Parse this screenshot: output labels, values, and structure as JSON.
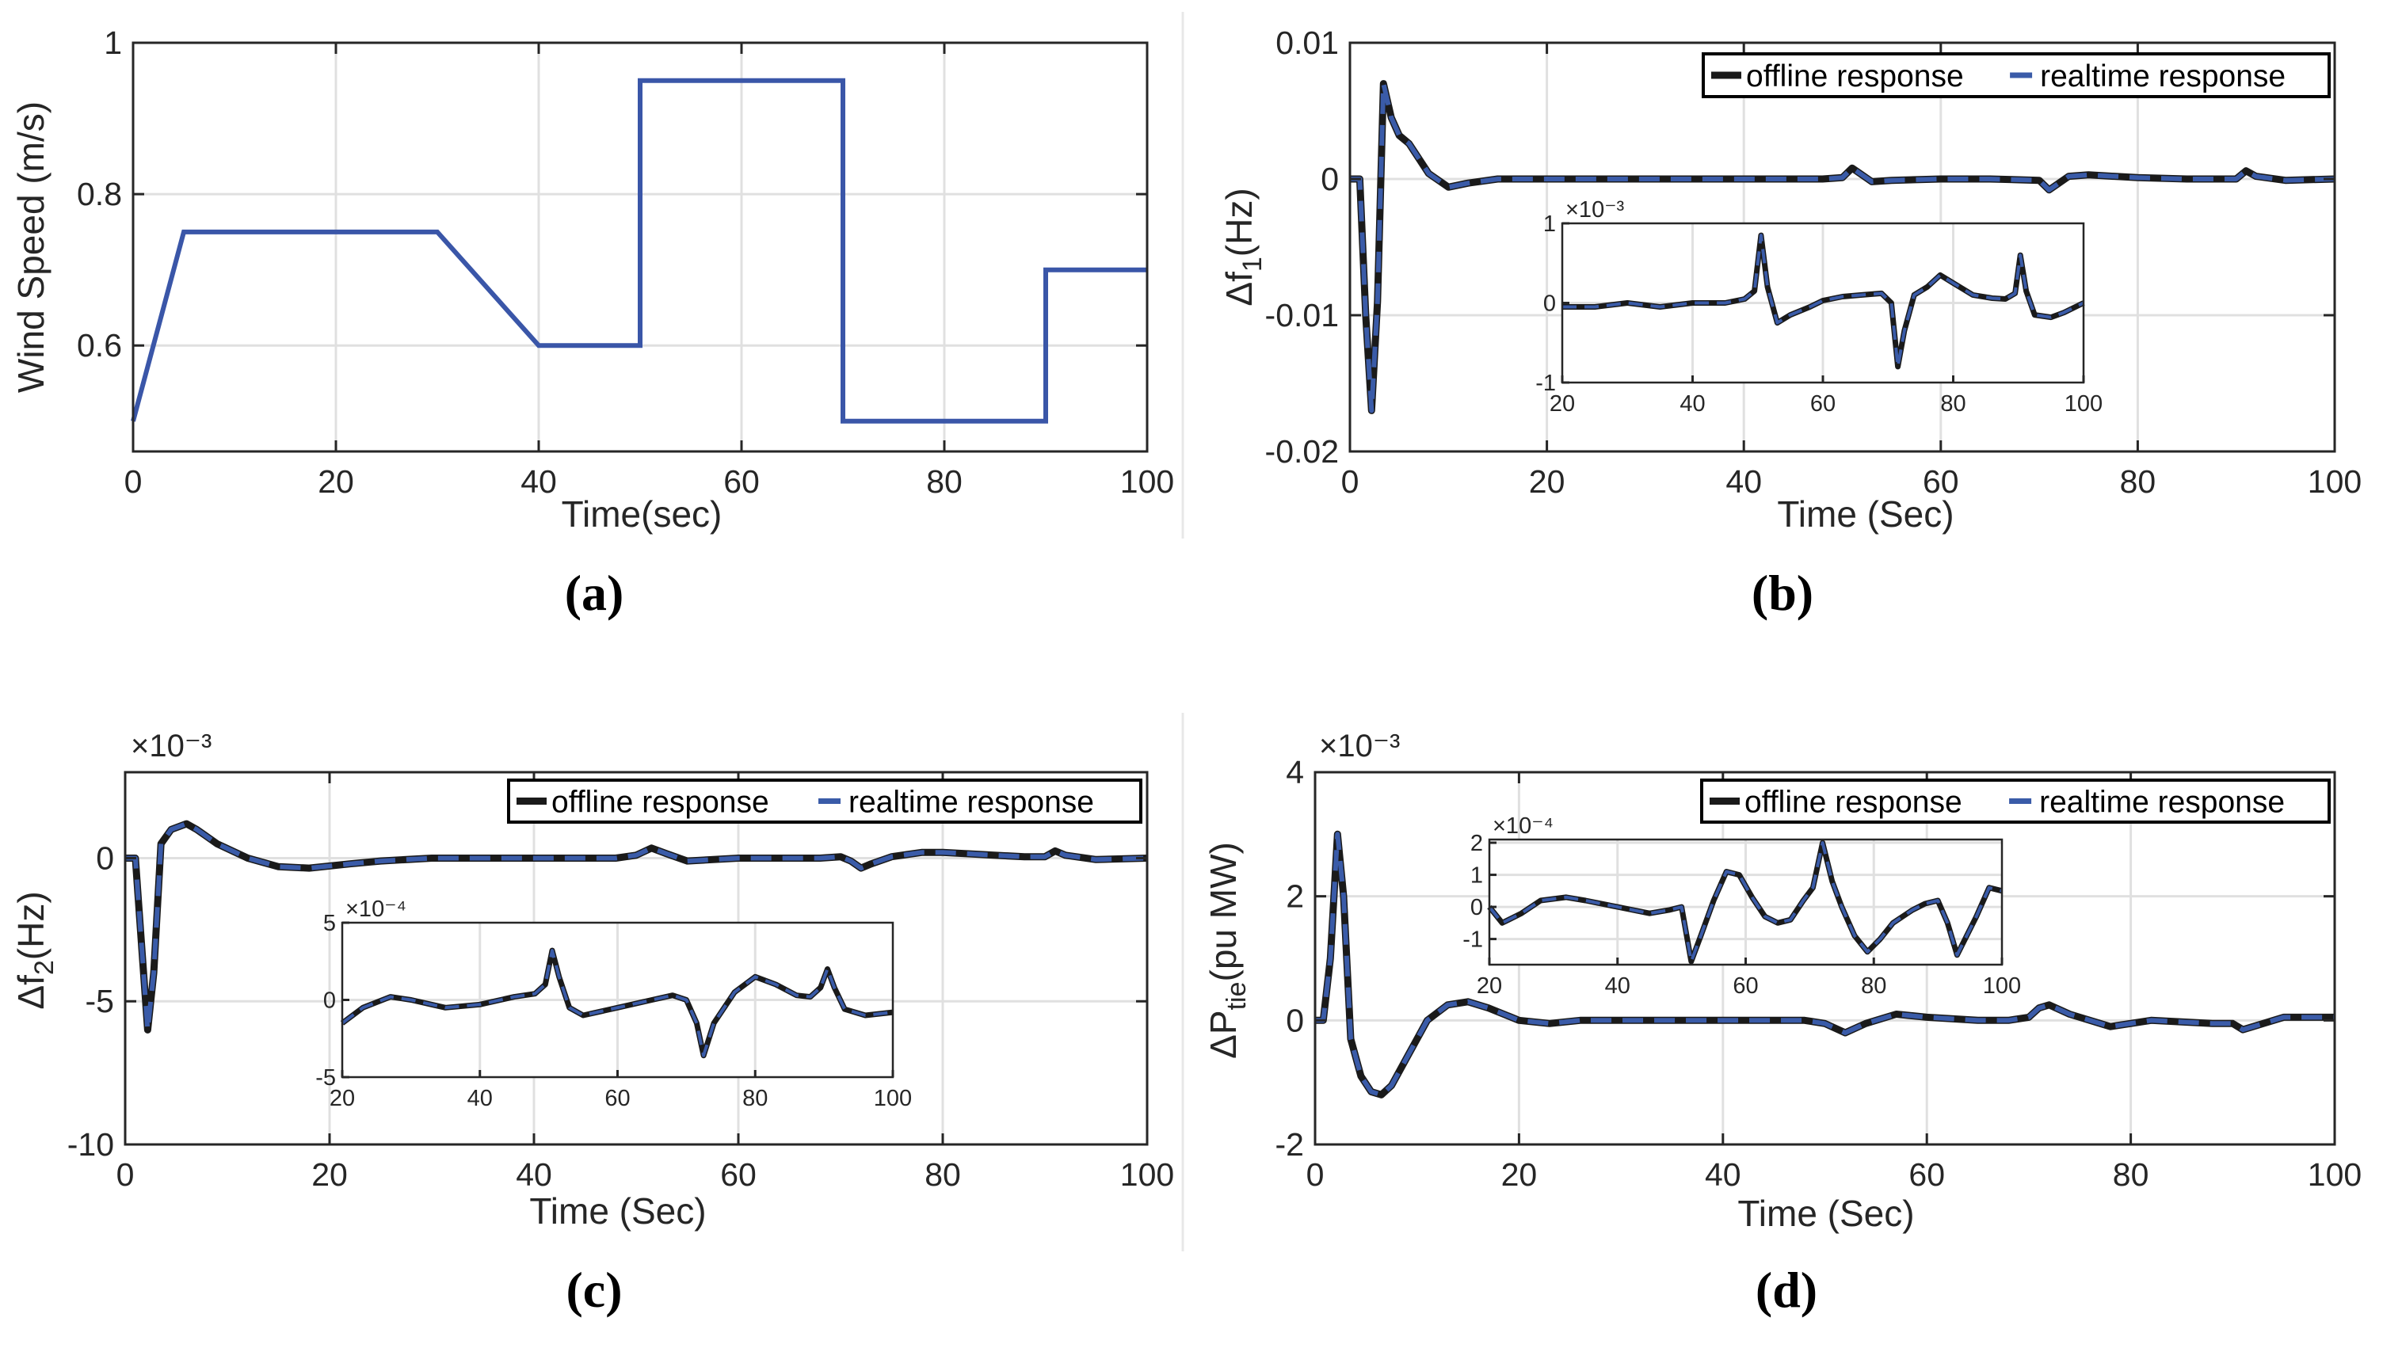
{
  "colors": {
    "offline": "#1a1a1a",
    "realtime": "#3a5ba8",
    "wind": "#3a56a8",
    "grid": "#e0e0e0",
    "axis": "#262626"
  },
  "chart_data": [
    {
      "id": "a",
      "type": "line",
      "caption": "(a)",
      "title": "",
      "xlabel": "Time(sec)",
      "ylabel": "Wind Speed (m/s)",
      "xlim": [
        0,
        100
      ],
      "ylim": [
        0.46,
        1.0
      ],
      "xticks": [
        0,
        20,
        40,
        60,
        80,
        100
      ],
      "xtick_labels": [
        "0",
        "20",
        "40",
        "60",
        "80",
        "100"
      ],
      "yticks": [
        0.6,
        0.8,
        1.0
      ],
      "ytick_labels": [
        "0.6",
        "0.8",
        "1"
      ],
      "grid": true,
      "series": [
        {
          "name": "Wind Speed",
          "x": [
            0,
            5,
            30,
            40,
            50,
            50,
            70,
            70,
            90,
            90,
            100
          ],
          "y": [
            0.5,
            0.75,
            0.75,
            0.6,
            0.6,
            0.95,
            0.95,
            0.5,
            0.5,
            0.7,
            0.7
          ]
        }
      ]
    },
    {
      "id": "b",
      "type": "line",
      "caption": "(b)",
      "xlabel": "Time (Sec)",
      "ylabel_main": "Δf",
      "ylabel_sub": "1",
      "ylabel_tail": "(Hz)",
      "xlim": [
        0,
        100
      ],
      "ylim": [
        -0.02,
        0.01
      ],
      "xticks": [
        0,
        20,
        40,
        60,
        80,
        100
      ],
      "xtick_labels": [
        "0",
        "20",
        "40",
        "60",
        "80",
        "100"
      ],
      "yticks": [
        -0.02,
        -0.01,
        0,
        0.01
      ],
      "ytick_labels": [
        "-0.02",
        "-0.01",
        "0",
        "0.01"
      ],
      "grid": true,
      "legend": [
        "offline response",
        "realtime response"
      ],
      "legend_position": "top-right",
      "series": [
        {
          "name": "offline response",
          "x": [
            0,
            1,
            1.6,
            2.2,
            2.8,
            3.4,
            4.2,
            5,
            6,
            7,
            8,
            10,
            12,
            15,
            20,
            30,
            40,
            48,
            50,
            51,
            52,
            53,
            55,
            60,
            65,
            70,
            71,
            72,
            73,
            75,
            80,
            85,
            90,
            91,
            92,
            95,
            100
          ],
          "y": [
            0,
            0,
            -0.01,
            -0.017,
            -0.009,
            0.007,
            0.0045,
            0.0032,
            0.0026,
            0.0015,
            0.0004,
            -0.0006,
            -0.0003,
            0,
            0,
            0,
            0,
            0,
            0.0001,
            0.0008,
            0.0003,
            -0.0002,
            -0.0001,
            0,
            0,
            -0.0001,
            -0.0008,
            -0.0003,
            0.0002,
            0.0003,
            0.0001,
            0,
            0,
            0.0006,
            0.0002,
            -0.0001,
            0
          ]
        }
      ],
      "inset": {
        "xlim": [
          20,
          100
        ],
        "ylim": [
          -1,
          1
        ],
        "exponent": "×10⁻³",
        "xticks": [
          20,
          40,
          60,
          80,
          100
        ],
        "xtick_labels": [
          "20",
          "40",
          "60",
          "80",
          "100"
        ],
        "yticks": [
          -1,
          0,
          1
        ],
        "ytick_labels": [
          "-1",
          "0",
          "1"
        ],
        "series": {
          "x": [
            20,
            25,
            30,
            35,
            40,
            45,
            48,
            49.5,
            50.5,
            51.5,
            53,
            55,
            58,
            60,
            63,
            66,
            69,
            70.5,
            71.5,
            72.5,
            74,
            76,
            78,
            80,
            83,
            86,
            88,
            89.5,
            90.3,
            91.2,
            92.5,
            95,
            97,
            100
          ],
          "y": [
            -0.05,
            -0.05,
            0,
            -0.05,
            0,
            0,
            0.05,
            0.15,
            0.85,
            0.2,
            -0.25,
            -0.15,
            -0.05,
            0.03,
            0.08,
            0.1,
            0.12,
            0.0,
            -0.8,
            -0.35,
            0.1,
            0.2,
            0.35,
            0.25,
            0.1,
            0.06,
            0.05,
            0.12,
            0.6,
            0.15,
            -0.15,
            -0.18,
            -0.12,
            0.0
          ]
        }
      }
    },
    {
      "id": "c",
      "type": "line",
      "caption": "(c)",
      "xlabel": "Time (Sec)",
      "ylabel_main": "Δf",
      "ylabel_sub": "2",
      "ylabel_tail": "(Hz)",
      "exponent": "×10⁻³",
      "xlim": [
        0,
        100
      ],
      "ylim": [
        -10,
        3
      ],
      "xticks": [
        0,
        20,
        40,
        60,
        80,
        100
      ],
      "xtick_labels": [
        "0",
        "20",
        "40",
        "60",
        "80",
        "100"
      ],
      "yticks": [
        -10,
        -5,
        0
      ],
      "ytick_labels": [
        "-10",
        "-5",
        "0"
      ],
      "grid": true,
      "legend": [
        "offline response",
        "realtime response"
      ],
      "legend_position": "top-right",
      "series": [
        {
          "name": "offline response",
          "x": [
            0,
            1,
            1.5,
            2.2,
            2.8,
            3.5,
            4.5,
            6,
            7,
            9,
            12,
            15,
            18,
            22,
            25,
            30,
            40,
            48,
            50,
            51.5,
            53,
            55,
            60,
            65,
            68,
            70,
            71,
            72,
            73,
            75,
            78,
            80,
            85,
            88,
            90,
            91,
            92,
            95,
            100
          ],
          "y": [
            0,
            0,
            -2.5,
            -6,
            -4,
            0.5,
            1.0,
            1.2,
            1.0,
            0.5,
            0,
            -0.3,
            -0.35,
            -0.2,
            -0.1,
            0,
            0,
            0,
            0.1,
            0.35,
            0.15,
            -0.1,
            0,
            0,
            0,
            0.05,
            -0.1,
            -0.35,
            -0.2,
            0.05,
            0.2,
            0.2,
            0.1,
            0.05,
            0.05,
            0.25,
            0.1,
            -0.05,
            0
          ]
        }
      ],
      "inset": {
        "xlim": [
          20,
          100
        ],
        "ylim": [
          -5,
          5
        ],
        "exponent": "×10⁻⁴",
        "xticks": [
          20,
          40,
          60,
          80,
          100
        ],
        "xtick_labels": [
          "20",
          "40",
          "60",
          "80",
          "100"
        ],
        "yticks": [
          -5,
          0,
          5
        ],
        "ytick_labels": [
          "-5",
          "0",
          "5"
        ],
        "series": {
          "x": [
            20,
            23,
            27,
            30,
            35,
            40,
            45,
            48,
            49.5,
            50.5,
            51.5,
            53,
            55,
            60,
            65,
            68,
            70,
            71.5,
            72.5,
            74,
            77,
            80,
            83,
            86,
            88,
            89.5,
            90.5,
            91.5,
            93,
            96,
            100
          ],
          "y": [
            -1.5,
            -0.5,
            0.2,
            0,
            -0.5,
            -0.3,
            0.2,
            0.4,
            1.0,
            3.2,
            1.5,
            -0.5,
            -1.0,
            -0.5,
            0,
            0.3,
            0,
            -1.5,
            -3.6,
            -1.5,
            0.5,
            1.5,
            1.0,
            0.3,
            0.2,
            0.8,
            2.0,
            0.8,
            -0.6,
            -1.0,
            -0.8
          ]
        }
      }
    },
    {
      "id": "d",
      "type": "line",
      "caption": "(d)",
      "xlabel": "Time (Sec)",
      "ylabel_main": "ΔP",
      "ylabel_sub": "tie",
      "ylabel_tail": "(pu MW)",
      "exponent": "×10⁻³",
      "xlim": [
        0,
        100
      ],
      "ylim": [
        -2,
        4
      ],
      "xticks": [
        0,
        20,
        40,
        60,
        80,
        100
      ],
      "xtick_labels": [
        "0",
        "20",
        "40",
        "60",
        "80",
        "100"
      ],
      "yticks": [
        -2,
        0,
        2,
        4
      ],
      "ytick_labels": [
        "-2",
        "0",
        "2",
        "4"
      ],
      "grid": true,
      "legend": [
        "offline response",
        "realtime response"
      ],
      "legend_position": "top-right",
      "series": [
        {
          "name": "offline response",
          "x": [
            0,
            0.8,
            1.5,
            2.2,
            2.8,
            3.5,
            4.5,
            5.5,
            6.5,
            7.5,
            9,
            11,
            13,
            15,
            17,
            20,
            23,
            26,
            30,
            40,
            48,
            50,
            52,
            54,
            57,
            60,
            65,
            68,
            70,
            71,
            72,
            74,
            78,
            82,
            88,
            90,
            91,
            92,
            95,
            100
          ],
          "y": [
            0,
            0,
            1.0,
            3.0,
            2.0,
            -0.3,
            -0.9,
            -1.15,
            -1.2,
            -1.05,
            -0.6,
            0,
            0.25,
            0.3,
            0.2,
            0,
            -0.05,
            0,
            0,
            0,
            0,
            -0.05,
            -0.2,
            -0.05,
            0.1,
            0.05,
            0,
            0,
            0.05,
            0.2,
            0.25,
            0.1,
            -0.1,
            0,
            -0.05,
            -0.05,
            -0.15,
            -0.1,
            0.05,
            0.05
          ]
        }
      ],
      "inset": {
        "xlim": [
          20,
          100
        ],
        "ylim": [
          -1.8,
          2.1
        ],
        "exponent": "×10⁻⁴",
        "xticks": [
          20,
          40,
          60,
          80,
          100
        ],
        "xtick_labels": [
          "20",
          "40",
          "60",
          "80",
          "100"
        ],
        "yticks": [
          -1,
          0,
          1,
          2
        ],
        "ytick_labels": [
          "-1",
          "0",
          "1",
          "2"
        ],
        "series": {
          "x": [
            20,
            22,
            25,
            28,
            32,
            35,
            40,
            45,
            48,
            50,
            51.5,
            53,
            55,
            57,
            59,
            61,
            63,
            65,
            67,
            69,
            70.5,
            72,
            73.5,
            75,
            77,
            79,
            81,
            83,
            86,
            88,
            90,
            91.5,
            93,
            96,
            98,
            100
          ],
          "y": [
            0,
            -0.5,
            -0.2,
            0.2,
            0.3,
            0.2,
            0,
            -0.2,
            -0.1,
            0,
            -1.7,
            -0.9,
            0.2,
            1.1,
            1.0,
            0.3,
            -0.3,
            -0.5,
            -0.4,
            0.2,
            0.6,
            2.0,
            0.8,
            0.0,
            -0.9,
            -1.4,
            -1.0,
            -0.5,
            -0.1,
            0.1,
            0.2,
            -0.5,
            -1.5,
            -0.3,
            0.6,
            0.5
          ]
        }
      }
    }
  ]
}
